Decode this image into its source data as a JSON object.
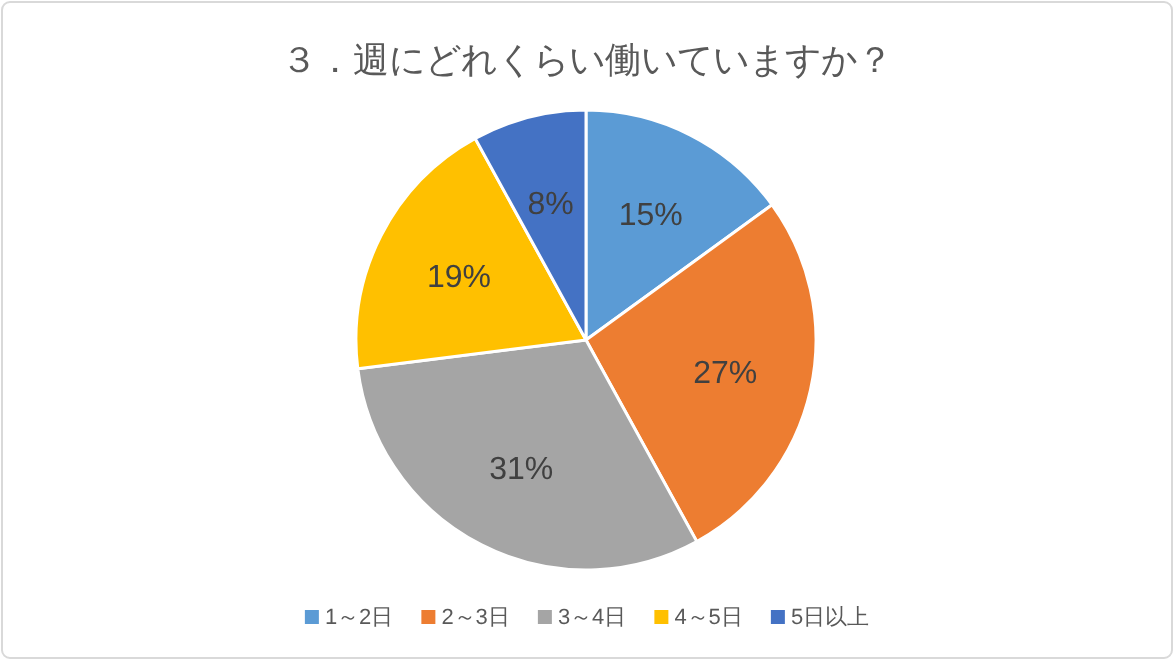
{
  "chart_data": {
    "type": "pie",
    "title": "３．週にどれくらい働いていますか？",
    "categories": [
      "1～2日",
      "2～3日",
      "3～4日",
      "4～5日",
      "5日以上"
    ],
    "values": [
      15,
      27,
      31,
      19,
      8
    ],
    "value_labels": [
      "15%",
      "27%",
      "31%",
      "19%",
      "8%"
    ],
    "colors": [
      "#5b9bd5",
      "#ed7d31",
      "#a5a5a5",
      "#ffc000",
      "#4472c4"
    ],
    "legend": "bottom"
  }
}
